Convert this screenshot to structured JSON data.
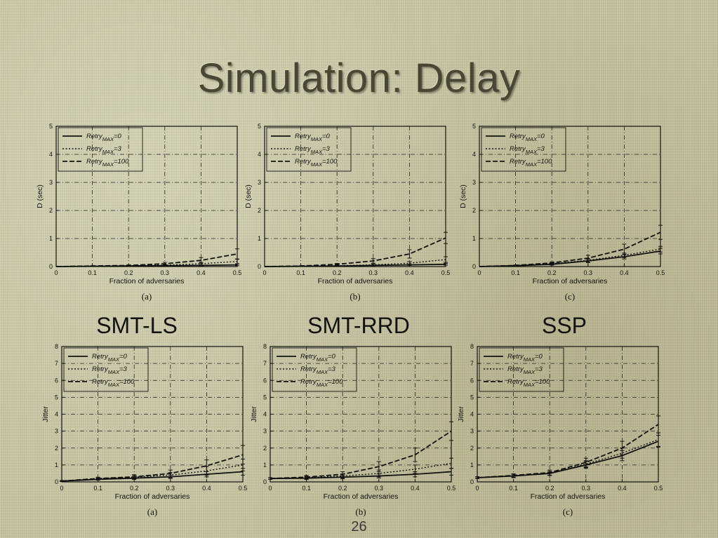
{
  "slide": {
    "title": "Simulation: Delay",
    "group_labels": [
      "SMT-LS",
      "SMT-RRD",
      "SSP"
    ],
    "page_number": "26"
  },
  "chart_data": [
    {
      "type": "line",
      "panel_label": "(a)",
      "protocol": "SMT-LS",
      "xlabel": "Fraction of adversaries",
      "ylabel": "D (sec)",
      "x": [
        0,
        0.1,
        0.2,
        0.3,
        0.4,
        0.5
      ],
      "xlim": [
        0,
        0.5
      ],
      "ylim": [
        0,
        5
      ],
      "xticks": [
        "0",
        "0.1",
        "0.2",
        "0.3",
        "0.4",
        "0.5"
      ],
      "yticks": [
        "0",
        "1",
        "2",
        "3",
        "4",
        "5"
      ],
      "grid": true,
      "legend_position": "top-left",
      "series": [
        {
          "legend_main": "Retry",
          "legend_sub": "MAX",
          "legend_value": "=0",
          "values": [
            0,
            0.01,
            0.02,
            0.03,
            0.04,
            0.06
          ],
          "err": [
            0,
            0,
            0,
            0.01,
            0.02,
            0.03
          ]
        },
        {
          "legend_main": "Retry",
          "legend_sub": "MAX",
          "legend_value": "=3",
          "values": [
            0,
            0.01,
            0.03,
            0.05,
            0.1,
            0.18
          ],
          "err": [
            0,
            0,
            0.01,
            0.02,
            0.05,
            0.08
          ]
        },
        {
          "legend_main": "Retry",
          "legend_sub": "MAX",
          "legend_value": "=100",
          "values": [
            0,
            0.02,
            0.04,
            0.1,
            0.22,
            0.45
          ],
          "err": [
            0,
            0.01,
            0.02,
            0.05,
            0.1,
            0.18
          ]
        }
      ]
    },
    {
      "type": "line",
      "panel_label": "(b)",
      "protocol": "SMT-RRD",
      "xlabel": "Fraction of adversaries",
      "ylabel": "D (sec)",
      "x": [
        0,
        0.1,
        0.2,
        0.3,
        0.4,
        0.5
      ],
      "xlim": [
        0,
        0.5
      ],
      "ylim": [
        0,
        5
      ],
      "xticks": [
        "0",
        "0.1",
        "0.2",
        "0.3",
        "0.4",
        "0.5"
      ],
      "yticks": [
        "0",
        "1",
        "2",
        "3",
        "4",
        "5"
      ],
      "grid": true,
      "legend_position": "top-left",
      "series": [
        {
          "legend_main": "Retry",
          "legend_sub": "MAX",
          "legend_value": "=0",
          "values": [
            0,
            0.01,
            0.02,
            0.04,
            0.06,
            0.08
          ],
          "err": [
            0,
            0,
            0,
            0.01,
            0.02,
            0.03
          ]
        },
        {
          "legend_main": "Retry",
          "legend_sub": "MAX",
          "legend_value": "=3",
          "values": [
            0,
            0.01,
            0.03,
            0.06,
            0.12,
            0.25
          ],
          "err": [
            0,
            0,
            0.01,
            0.03,
            0.06,
            0.1
          ]
        },
        {
          "legend_main": "Retry",
          "legend_sub": "MAX",
          "legend_value": "=100",
          "values": [
            0,
            0.02,
            0.08,
            0.2,
            0.45,
            1.02
          ],
          "err": [
            0,
            0.01,
            0.03,
            0.08,
            0.15,
            0.2
          ]
        }
      ]
    },
    {
      "type": "line",
      "panel_label": "(c)",
      "protocol": "SSP",
      "xlabel": "Fraction of adversaries",
      "ylabel": "D (sec)",
      "x": [
        0,
        0.1,
        0.2,
        0.3,
        0.4,
        0.5
      ],
      "xlim": [
        0,
        0.5
      ],
      "ylim": [
        0,
        5
      ],
      "xticks": [
        "0",
        "0.1",
        "0.2",
        "0.3",
        "0.4",
        "0.5"
      ],
      "yticks": [
        "0",
        "1",
        "2",
        "3",
        "4",
        "5"
      ],
      "grid": true,
      "legend_position": "top-left",
      "series": [
        {
          "legend_main": "Retry",
          "legend_sub": "MAX",
          "legend_value": "=0",
          "values": [
            0,
            0.03,
            0.08,
            0.2,
            0.35,
            0.55
          ],
          "err": [
            0,
            0.01,
            0.03,
            0.06,
            0.08,
            0.1
          ]
        },
        {
          "legend_main": "Retry",
          "legend_sub": "MAX",
          "legend_value": "=3",
          "values": [
            0,
            0.03,
            0.1,
            0.22,
            0.4,
            0.62
          ],
          "err": [
            0,
            0.01,
            0.03,
            0.06,
            0.08,
            0.1
          ]
        },
        {
          "legend_main": "Retry",
          "legend_sub": "MAX",
          "legend_value": "=100",
          "values": [
            0,
            0.04,
            0.13,
            0.3,
            0.62,
            1.22
          ],
          "err": [
            0,
            0.02,
            0.04,
            0.1,
            0.18,
            0.25
          ]
        }
      ]
    },
    {
      "type": "line",
      "panel_label": "(a)",
      "protocol": "SMT-LS",
      "xlabel": "Fraction of adversaries",
      "ylabel": "Jitter",
      "x": [
        0,
        0.1,
        0.2,
        0.3,
        0.4,
        0.5
      ],
      "xlim": [
        0,
        0.5
      ],
      "ylim": [
        0,
        8
      ],
      "xticks": [
        "0",
        "0.1",
        "0.2",
        "0.3",
        "0.4",
        "0.5"
      ],
      "yticks": [
        "0",
        "1",
        "2",
        "3",
        "4",
        "5",
        "6",
        "7",
        "8"
      ],
      "grid": true,
      "legend_position": "top-left",
      "series": [
        {
          "legend_main": "Retry",
          "legend_sub": "MAX",
          "legend_value": "=0",
          "values": [
            0.05,
            0.15,
            0.22,
            0.3,
            0.45,
            0.6
          ],
          "err": [
            0.02,
            0.05,
            0.08,
            0.1,
            0.15,
            0.2
          ]
        },
        {
          "legend_main": "Retry",
          "legend_sub": "MAX",
          "legend_value": "=3",
          "values": [
            0.05,
            0.18,
            0.28,
            0.4,
            0.65,
            1.0
          ],
          "err": [
            0.02,
            0.06,
            0.1,
            0.15,
            0.25,
            0.35
          ]
        },
        {
          "legend_main": "Retry",
          "legend_sub": "MAX",
          "legend_value": "=100",
          "values": [
            0.05,
            0.2,
            0.3,
            0.5,
            0.95,
            1.6
          ],
          "err": [
            0.02,
            0.08,
            0.12,
            0.2,
            0.35,
            0.55
          ]
        }
      ]
    },
    {
      "type": "line",
      "panel_label": "(b)",
      "protocol": "SMT-RRD",
      "xlabel": "Fraction of adversaries",
      "ylabel": "Jitter",
      "x": [
        0,
        0.1,
        0.2,
        0.3,
        0.4,
        0.5
      ],
      "xlim": [
        0,
        0.5
      ],
      "ylim": [
        0,
        8
      ],
      "xticks": [
        "0",
        "0.1",
        "0.2",
        "0.3",
        "0.4",
        "0.5"
      ],
      "yticks": [
        "0",
        "1",
        "2",
        "3",
        "4",
        "5",
        "6",
        "7",
        "8"
      ],
      "grid": true,
      "legend_position": "top-left",
      "series": [
        {
          "legend_main": "Retry",
          "legend_sub": "MAX",
          "legend_value": "=0",
          "values": [
            0.2,
            0.22,
            0.28,
            0.35,
            0.45,
            0.6
          ],
          "err": [
            0.05,
            0.08,
            0.1,
            0.12,
            0.15,
            0.2
          ]
        },
        {
          "legend_main": "Retry",
          "legend_sub": "MAX",
          "legend_value": "=3",
          "values": [
            0.2,
            0.25,
            0.35,
            0.5,
            0.75,
            1.1
          ],
          "err": [
            0.05,
            0.08,
            0.12,
            0.2,
            0.25,
            0.3
          ]
        },
        {
          "legend_main": "Retry",
          "legend_sub": "MAX",
          "legend_value": "=100",
          "values": [
            0.2,
            0.28,
            0.45,
            0.9,
            1.6,
            3.0
          ],
          "err": [
            0.05,
            0.1,
            0.15,
            0.3,
            0.4,
            0.55
          ]
        }
      ]
    },
    {
      "type": "line",
      "panel_label": "(c)",
      "protocol": "SSP",
      "xlabel": "Fraction of adversaries",
      "ylabel": "Jitter",
      "x": [
        0,
        0.1,
        0.2,
        0.3,
        0.4,
        0.5
      ],
      "xlim": [
        0,
        0.5
      ],
      "ylim": [
        0,
        8
      ],
      "xticks": [
        "0",
        "0.1",
        "0.2",
        "0.3",
        "0.4",
        "0.5"
      ],
      "yticks": [
        "0",
        "1",
        "2",
        "3",
        "4",
        "5",
        "6",
        "7",
        "8"
      ],
      "grid": true,
      "legend_position": "top-left",
      "series": [
        {
          "legend_main": "Retry",
          "legend_sub": "MAX",
          "legend_value": "=0",
          "values": [
            0.25,
            0.35,
            0.5,
            1.0,
            1.55,
            2.4
          ],
          "err": [
            0.05,
            0.1,
            0.12,
            0.2,
            0.3,
            0.35
          ]
        },
        {
          "legend_main": "Retry",
          "legend_sub": "MAX",
          "legend_value": "=3",
          "values": [
            0.25,
            0.35,
            0.5,
            1.05,
            1.7,
            2.5
          ],
          "err": [
            0.05,
            0.1,
            0.12,
            0.2,
            0.3,
            0.4
          ]
        },
        {
          "legend_main": "Retry",
          "legend_sub": "MAX",
          "legend_value": "=100",
          "values": [
            0.25,
            0.38,
            0.55,
            1.15,
            2.0,
            3.4
          ],
          "err": [
            0.05,
            0.1,
            0.15,
            0.25,
            0.4,
            0.5
          ]
        }
      ]
    }
  ]
}
